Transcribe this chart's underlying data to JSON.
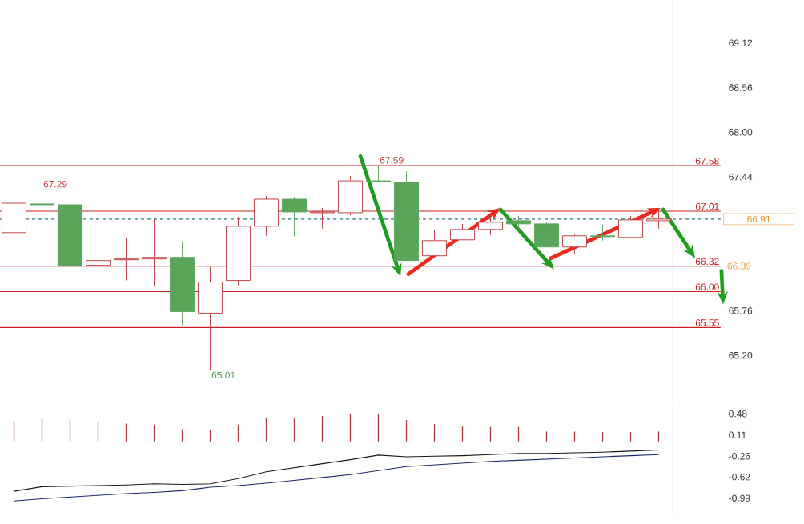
{
  "chart_data": [
    {
      "type": "candlestick",
      "categories": [
        null,
        null,
        null,
        null,
        null,
        null,
        null,
        null,
        null,
        null,
        null,
        null,
        null,
        null,
        null,
        null,
        null,
        null,
        null,
        null,
        null,
        null,
        null,
        null
      ],
      "ohlc": [
        [
          66.74,
          67.23,
          66.74,
          67.11
        ],
        [
          67.1,
          67.29,
          66.88,
          67.09
        ],
        [
          67.09,
          67.22,
          66.12,
          66.32
        ],
        [
          66.33,
          66.79,
          66.27,
          66.39
        ],
        [
          66.4,
          66.68,
          66.14,
          66.41
        ],
        [
          66.41,
          66.91,
          66.07,
          66.43
        ],
        [
          66.43,
          66.63,
          65.58,
          65.75
        ],
        [
          65.73,
          66.31,
          65.01,
          66.12
        ],
        [
          66.14,
          66.94,
          66.08,
          66.82
        ],
        [
          66.82,
          67.2,
          66.7,
          67.16
        ],
        [
          67.16,
          67.19,
          66.69,
          67.0
        ],
        [
          66.99,
          67.05,
          66.79,
          67.0
        ],
        [
          66.99,
          67.45,
          66.96,
          67.39
        ],
        [
          67.39,
          67.59,
          67.38,
          67.38
        ],
        [
          67.37,
          67.51,
          66.39,
          66.39
        ],
        [
          66.45,
          66.77,
          66.45,
          66.64
        ],
        [
          66.65,
          66.85,
          66.65,
          66.78
        ],
        [
          66.78,
          66.95,
          66.71,
          66.87
        ],
        [
          66.89,
          66.95,
          66.76,
          66.85
        ],
        [
          66.85,
          66.87,
          66.56,
          66.56
        ],
        [
          66.56,
          66.73,
          66.48,
          66.7
        ],
        [
          66.7,
          66.84,
          66.64,
          66.69
        ],
        [
          66.68,
          66.95,
          66.68,
          66.9
        ],
        [
          66.89,
          67.05,
          66.79,
          66.91
        ]
      ],
      "colors": [
        "#c0393b",
        "#5ba55b",
        "#5ba55b",
        "#c0393b",
        "#c0393b",
        "#c0393b",
        "#5ba55b",
        "#c0393b",
        "#c0393b",
        "#c0393b",
        "#5ba55b",
        "#c0393b",
        "#c0393b",
        "#5ba55b",
        "#5ba55b",
        "#c0393b",
        "#c0393b",
        "#c0393b",
        "#5ba55b",
        "#5ba55b",
        "#c0393b",
        "#5ba55b",
        "#c0393b",
        "#c0393b"
      ],
      "ylim": [
        64.64,
        69.66
      ],
      "yticks": [
        {
          "value": 65.2,
          "label": "65.20"
        },
        {
          "value": 65.76,
          "label": "65.76"
        },
        {
          "value": 66.32,
          "label": null
        },
        {
          "value": 67.44,
          "label": "67.44"
        },
        {
          "value": 68.0,
          "label": "68.00"
        },
        {
          "value": 68.56,
          "label": "68.56"
        },
        {
          "value": 69.12,
          "label": "69.12"
        }
      ],
      "ref_lines": [
        {
          "axis": "y",
          "value": 67.58,
          "label": "67.58",
          "color": "#cc2020"
        },
        {
          "axis": "y",
          "value": 67.01,
          "label": "67.01",
          "color": "#cc2020"
        },
        {
          "axis": "y",
          "value": 66.91,
          "label": "66.91",
          "color": "#2a7a8a",
          "line_style": "dashed"
        },
        {
          "axis": "y",
          "value": 66.32,
          "label": "66.32",
          "color": "#cc2020"
        },
        {
          "axis": "y",
          "value": 66.0,
          "label": "66.00",
          "color": "#cc2020"
        },
        {
          "axis": "y",
          "value": 65.55,
          "label": "65.55",
          "color": "#cc2020"
        }
      ],
      "annotations": [
        "67.29",
        "67.59",
        "65.01",
        "66.39"
      ]
    },
    {
      "type": "bar",
      "categories": [
        null,
        null,
        null,
        null,
        null,
        null,
        null,
        null,
        null,
        null,
        null,
        null,
        null,
        null,
        null,
        null,
        null,
        null,
        null,
        null,
        null,
        null,
        null,
        null
      ],
      "series": [
        {
          "type": "bar",
          "color": "#b03a3a",
          "values": [
            0.35,
            0.41,
            0.37,
            0.33,
            0.31,
            0.29,
            0.21,
            0.19,
            0.29,
            0.4,
            0.41,
            0.44,
            0.47,
            0.48,
            0.37,
            0.3,
            0.26,
            0.25,
            0.25,
            0.17,
            0.17,
            0.16,
            0.16,
            0.17
          ]
        },
        {
          "type": "line",
          "color": "#1a1a1a",
          "values": [
            -0.87,
            -0.79,
            -0.78,
            -0.77,
            -0.76,
            -0.74,
            -0.75,
            -0.74,
            -0.65,
            -0.53,
            -0.46,
            -0.39,
            -0.32,
            -0.24,
            -0.27,
            -0.26,
            -0.25,
            -0.23,
            -0.21,
            -0.21,
            -0.2,
            -0.19,
            -0.17,
            -0.15
          ]
        },
        {
          "type": "line",
          "color": "#1f2a6e",
          "values": [
            -1.04,
            -1.0,
            -0.97,
            -0.94,
            -0.91,
            -0.89,
            -0.86,
            -0.8,
            -0.77,
            -0.73,
            -0.68,
            -0.63,
            -0.58,
            -0.51,
            -0.44,
            -0.41,
            -0.38,
            -0.35,
            -0.33,
            -0.31,
            -0.29,
            -0.27,
            -0.25,
            -0.23
          ]
        }
      ],
      "ylim": [
        -1.3,
        0.65
      ],
      "yticks": [
        0.48,
        0.11,
        -0.26,
        -0.62,
        -0.99
      ]
    }
  ]
}
